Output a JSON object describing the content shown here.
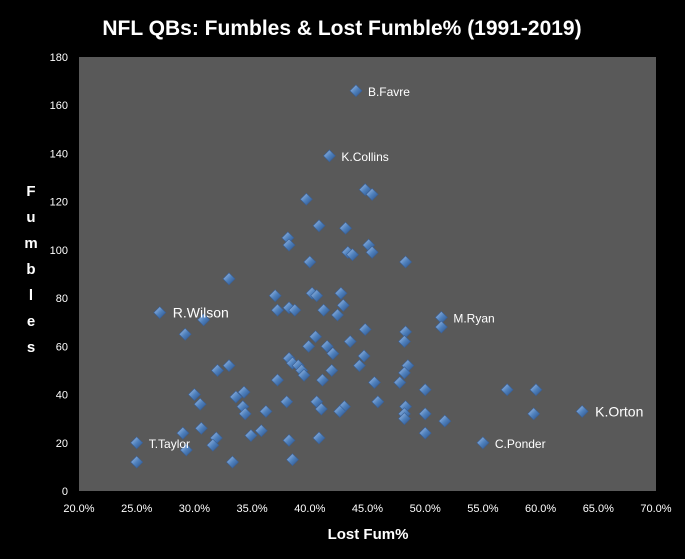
{
  "chart_data": {
    "type": "scatter",
    "title": "NFL QBs: Fumbles & Lost Fumble% (1991-2019)",
    "xlabel": "Lost Fum%",
    "ylabel": "Fumbles",
    "xlim": [
      0.2,
      0.7
    ],
    "ylim": [
      0,
      180
    ],
    "x_ticks": [
      0.2,
      0.25,
      0.3,
      0.35,
      0.4,
      0.45,
      0.5,
      0.55,
      0.6,
      0.65,
      0.7
    ],
    "x_tick_labels": [
      "20.0%",
      "25.0%",
      "30.0%",
      "35.0%",
      "40.0%",
      "45.0%",
      "50.0%",
      "55.0%",
      "60.0%",
      "65.0%",
      "70.0%"
    ],
    "y_ticks": [
      0,
      20,
      40,
      60,
      80,
      100,
      120,
      140,
      160,
      180
    ],
    "y_tick_labels": [
      "0",
      "20",
      "40",
      "60",
      "80",
      "100",
      "120",
      "140",
      "160",
      "180"
    ],
    "grid": false,
    "background": "#595959",
    "marker_color": "#4f81bd",
    "series": [
      {
        "name": "QBs",
        "points": [
          [
            0.44,
            166
          ],
          [
            0.417,
            139
          ],
          [
            0.448,
            125
          ],
          [
            0.454,
            123
          ],
          [
            0.397,
            121
          ],
          [
            0.408,
            110
          ],
          [
            0.431,
            109
          ],
          [
            0.381,
            105
          ],
          [
            0.382,
            102
          ],
          [
            0.451,
            102
          ],
          [
            0.433,
            99
          ],
          [
            0.454,
            99
          ],
          [
            0.437,
            98
          ],
          [
            0.4,
            95
          ],
          [
            0.483,
            95
          ],
          [
            0.33,
            88
          ],
          [
            0.402,
            82
          ],
          [
            0.427,
            82
          ],
          [
            0.37,
            81
          ],
          [
            0.406,
            81
          ],
          [
            0.429,
            77
          ],
          [
            0.382,
            76
          ],
          [
            0.372,
            75
          ],
          [
            0.387,
            75
          ],
          [
            0.412,
            75
          ],
          [
            0.424,
            73
          ],
          [
            0.27,
            74
          ],
          [
            0.308,
            71
          ],
          [
            0.514,
            72
          ],
          [
            0.514,
            68
          ],
          [
            0.448,
            67
          ],
          [
            0.483,
            66
          ],
          [
            0.292,
            65
          ],
          [
            0.405,
            64
          ],
          [
            0.435,
            62
          ],
          [
            0.482,
            62
          ],
          [
            0.415,
            60
          ],
          [
            0.399,
            60
          ],
          [
            0.42,
            57
          ],
          [
            0.447,
            56
          ],
          [
            0.382,
            55
          ],
          [
            0.385,
            53
          ],
          [
            0.39,
            52
          ],
          [
            0.33,
            52
          ],
          [
            0.443,
            52
          ],
          [
            0.485,
            52
          ],
          [
            0.393,
            50
          ],
          [
            0.32,
            50
          ],
          [
            0.419,
            50
          ],
          [
            0.482,
            49
          ],
          [
            0.395,
            48
          ],
          [
            0.372,
            46
          ],
          [
            0.411,
            46
          ],
          [
            0.456,
            45
          ],
          [
            0.478,
            45
          ],
          [
            0.3,
            40
          ],
          [
            0.336,
            39
          ],
          [
            0.343,
            41
          ],
          [
            0.5,
            42
          ],
          [
            0.571,
            42
          ],
          [
            0.596,
            42
          ],
          [
            0.38,
            37
          ],
          [
            0.406,
            37
          ],
          [
            0.459,
            37
          ],
          [
            0.305,
            36
          ],
          [
            0.342,
            35
          ],
          [
            0.41,
            34
          ],
          [
            0.43,
            35
          ],
          [
            0.362,
            33
          ],
          [
            0.426,
            33
          ],
          [
            0.483,
            35
          ],
          [
            0.344,
            32
          ],
          [
            0.482,
            32
          ],
          [
            0.5,
            32
          ],
          [
            0.594,
            32
          ],
          [
            0.636,
            33
          ],
          [
            0.482,
            30
          ],
          [
            0.517,
            29
          ],
          [
            0.306,
            26
          ],
          [
            0.358,
            25
          ],
          [
            0.29,
            24
          ],
          [
            0.349,
            23
          ],
          [
            0.5,
            24
          ],
          [
            0.319,
            22
          ],
          [
            0.382,
            21
          ],
          [
            0.408,
            22
          ],
          [
            0.316,
            19
          ],
          [
            0.25,
            20
          ],
          [
            0.55,
            20
          ],
          [
            0.293,
            17
          ],
          [
            0.333,
            12
          ],
          [
            0.385,
            13
          ],
          [
            0.25,
            12
          ]
        ]
      }
    ],
    "annotations": [
      {
        "text": "B.Favre",
        "x": 0.44,
        "y": 166,
        "size": "small"
      },
      {
        "text": "K.Collins",
        "x": 0.417,
        "y": 139,
        "size": "small"
      },
      {
        "text": "R.Wilson",
        "x": 0.27,
        "y": 74,
        "size": "large"
      },
      {
        "text": "M.Ryan",
        "x": 0.514,
        "y": 72,
        "size": "small"
      },
      {
        "text": "K.Orton",
        "x": 0.636,
        "y": 33,
        "size": "large"
      },
      {
        "text": "T.Taylor",
        "x": 0.25,
        "y": 20,
        "size": "small"
      },
      {
        "text": "C.Ponder",
        "x": 0.55,
        "y": 20,
        "size": "small"
      }
    ]
  }
}
